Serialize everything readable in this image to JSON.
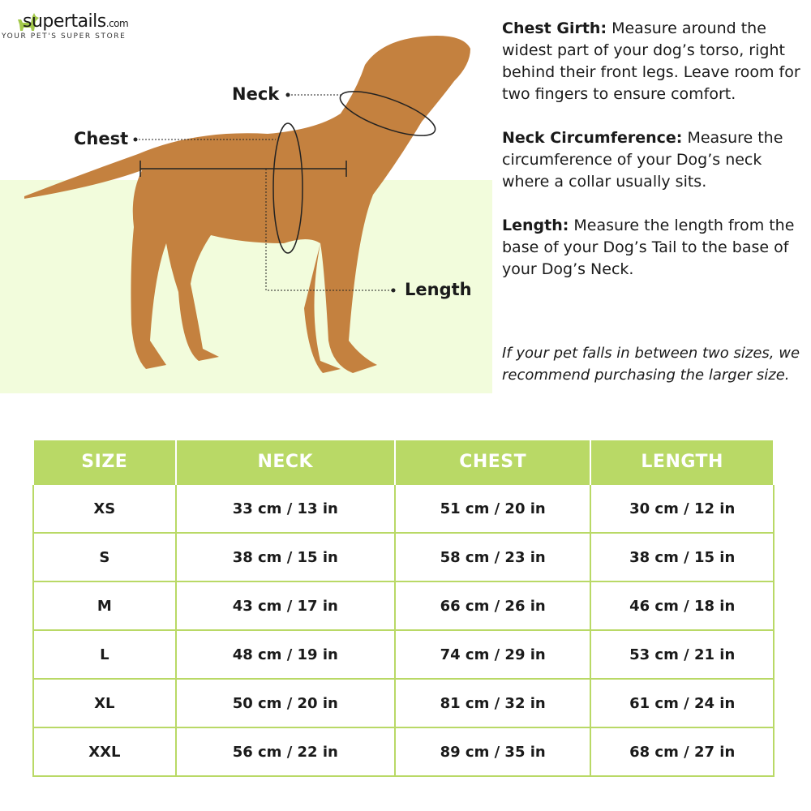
{
  "brand": {
    "name": "supertails",
    "suffix": ".com",
    "tagline": "YOUR PET'S SUPER STORE",
    "color": "#a3c94a"
  },
  "labels": {
    "neck": "Neck",
    "chest": "Chest",
    "length": "Length"
  },
  "descriptions": [
    {
      "title": "Chest Girth:",
      "text": " Measure around the widest part of your dog’s torso, right behind their front legs. Leave room for two fingers to ensure comfort."
    },
    {
      "title": "Neck Circumference:",
      "text": " Measure the circumference of your Dog’s neck where a collar usually sits."
    },
    {
      "title": "Length:",
      "text": " Measure the length from the base of your Dog’s Tail to the base of your Dog’s Neck."
    }
  ],
  "note": "If your pet falls in between two sizes, we recommend purchasing the larger size.",
  "table": {
    "headers": [
      "SIZE",
      "NECK",
      "CHEST",
      "LENGTH"
    ],
    "rows": [
      [
        "XS",
        "33 cm / 13 in",
        "51 cm / 20 in",
        "30 cm / 12 in"
      ],
      [
        "S",
        "38 cm / 15 in",
        "58 cm / 23 in",
        "38 cm / 15 in"
      ],
      [
        "M",
        "43 cm / 17 in",
        "66 cm / 26 in",
        "46 cm / 18 in"
      ],
      [
        "L",
        "48 cm / 19 in",
        "74 cm / 29 in",
        "53 cm / 21 in"
      ],
      [
        "XL",
        "50 cm / 20 in",
        "81 cm / 32 in",
        "61 cm / 24 in"
      ],
      [
        "XXL",
        "56 cm / 22 in",
        "89 cm / 35 in",
        "68 cm / 27 in"
      ]
    ]
  },
  "colors": {
    "accent": "#b9d966",
    "panel": "#f2fcdc",
    "dog": "#c4813f"
  }
}
